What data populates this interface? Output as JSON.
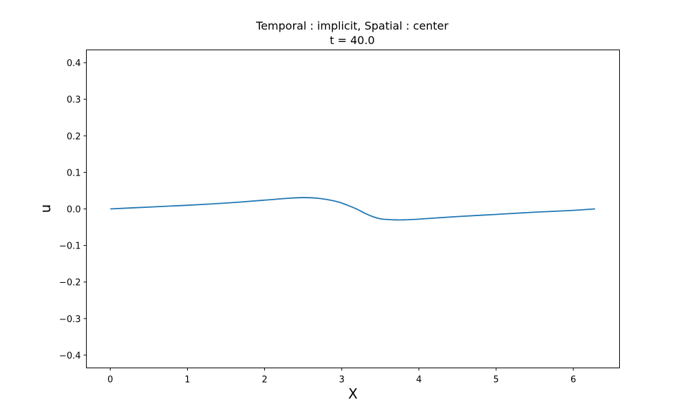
{
  "chart_data": {
    "type": "line",
    "title": "Temporal : implicit, Spatial : center",
    "subtitle": "t = 40.0",
    "xlabel": "X",
    "ylabel": "u",
    "xlim": [
      -0.31,
      6.6
    ],
    "ylim": [
      -0.435,
      0.435
    ],
    "xticks": [
      0,
      1,
      2,
      3,
      4,
      5,
      6
    ],
    "yticks": [
      -0.4,
      -0.3,
      -0.2,
      -0.1,
      0.0,
      0.1,
      0.2,
      0.3,
      0.4
    ],
    "grid": false,
    "series": [
      {
        "color": "#1f77b4",
        "x": [
          0.0,
          0.5,
          1.0,
          1.5,
          2.0,
          2.3,
          2.5,
          2.7,
          2.9,
          3.0,
          3.1,
          3.2,
          3.3,
          3.4,
          3.5,
          3.6,
          3.7,
          3.8,
          3.9,
          4.0,
          4.2,
          4.5,
          5.0,
          5.5,
          6.0,
          6.283
        ],
        "y": [
          0.0,
          0.005,
          0.01,
          0.016,
          0.024,
          0.029,
          0.031,
          0.029,
          0.022,
          0.016,
          0.008,
          -0.001,
          -0.012,
          -0.021,
          -0.027,
          -0.029,
          -0.03,
          -0.03,
          -0.029,
          -0.028,
          -0.025,
          -0.021,
          -0.015,
          -0.009,
          -0.004,
          0.0
        ]
      }
    ]
  }
}
